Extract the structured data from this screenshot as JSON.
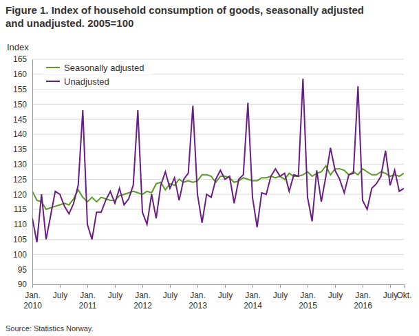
{
  "chart_data": {
    "type": "line",
    "title": "Figure 1. Index of household consumption of goods, seasonally adjusted and unadjusted. 2005=100",
    "y_label": "Index",
    "source": "Source: Statistics Norway.",
    "categories": [
      "Jan.\n2010",
      null,
      null,
      null,
      null,
      null,
      "July",
      null,
      null,
      null,
      null,
      null,
      "Jan.\n2011",
      null,
      null,
      null,
      null,
      null,
      "July",
      null,
      null,
      null,
      null,
      null,
      "Jan.\n2012",
      null,
      null,
      null,
      null,
      null,
      "July",
      null,
      null,
      null,
      null,
      null,
      "Jan.\n2013",
      null,
      null,
      null,
      null,
      null,
      "July",
      null,
      null,
      null,
      null,
      null,
      "Jan.\n2014",
      null,
      null,
      null,
      null,
      null,
      "July",
      null,
      null,
      null,
      null,
      null,
      "Jan.\n2015",
      null,
      null,
      null,
      null,
      null,
      "July",
      null,
      null,
      null,
      null,
      null,
      "Jan.\n2016",
      null,
      null,
      null,
      null,
      null,
      "July",
      null,
      null,
      "Okt."
    ],
    "series": [
      {
        "name": "Seasonally adjusted",
        "color": "#5a9a26",
        "values": [
          121,
          118,
          117.5,
          115,
          115.5,
          116,
          116.5,
          117,
          116.5,
          118.5,
          121.5,
          119,
          117.5,
          119,
          117.5,
          119,
          118.5,
          118,
          118,
          119.5,
          120,
          120.5,
          121,
          120.5,
          120,
          121,
          120.5,
          123.5,
          124,
          121.5,
          123.5,
          123,
          125,
          124,
          124.5,
          124,
          124.5,
          126.5,
          126.5,
          126,
          124,
          126,
          126,
          125.5,
          124,
          124.5,
          125.5,
          125,
          124.5,
          124.5,
          125.5,
          125.5,
          126,
          125.5,
          126,
          125,
          127,
          126,
          126,
          126.5,
          127.5,
          126,
          127,
          127.5,
          129.5,
          126.5,
          128.5,
          128.5,
          128,
          126.5,
          127.5,
          126.5,
          128.5,
          127.5,
          126.5,
          126.5,
          127.5,
          127,
          126,
          126.5,
          126,
          127
        ]
      },
      {
        "name": "Unadjusted",
        "color": "#6b1d86",
        "values": [
          112,
          104,
          120,
          105,
          113,
          121,
          120,
          116,
          113.5,
          117,
          123,
          148,
          110,
          105,
          114,
          114,
          118,
          121,
          117,
          122,
          116.5,
          118.5,
          123,
          148,
          114,
          110,
          120,
          112,
          123,
          127.5,
          122,
          125.5,
          118,
          125,
          127,
          149.5,
          120,
          110.5,
          120,
          119,
          125,
          128,
          125,
          126,
          117,
          125,
          126.5,
          150.5,
          119,
          109,
          120.5,
          120,
          126,
          128.5,
          126,
          127,
          121,
          126.5,
          126,
          158.5,
          119,
          111,
          128,
          117.5,
          126,
          135.5,
          128,
          125,
          120.5,
          126.5,
          127,
          156,
          118,
          115,
          122,
          123.5,
          126,
          134.5,
          123,
          128,
          121,
          122
        ]
      }
    ],
    "ylim": [
      90,
      165
    ],
    "yticks": [
      90,
      95,
      100,
      105,
      110,
      115,
      120,
      125,
      130,
      135,
      140,
      145,
      150,
      155,
      160,
      165
    ],
    "grid": true,
    "legend": "top-left"
  }
}
